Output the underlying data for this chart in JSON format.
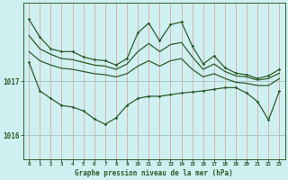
{
  "title": "Graphe pression niveau de la mer (hPa)",
  "bg_color": "#cff0f0",
  "line_color": "#2a5c2a",
  "grid_color_v": "#d8a8a8",
  "grid_color_h": "#a8c8c8",
  "xlim": [
    -0.5,
    23.5
  ],
  "ylim": [
    1015.55,
    1018.45
  ],
  "yticks": [
    1016,
    1017
  ],
  "xticks": [
    0,
    1,
    2,
    3,
    4,
    5,
    6,
    7,
    8,
    9,
    10,
    11,
    12,
    13,
    14,
    15,
    16,
    17,
    18,
    19,
    20,
    21,
    22,
    23
  ],
  "hours": [
    0,
    1,
    2,
    3,
    4,
    5,
    6,
    7,
    8,
    9,
    10,
    11,
    12,
    13,
    14,
    15,
    16,
    17,
    18,
    19,
    20,
    21,
    22,
    23
  ],
  "line_upper": [
    1018.15,
    1017.82,
    1017.6,
    1017.55,
    1017.55,
    1017.45,
    1017.4,
    1017.38,
    1017.3,
    1017.42,
    1017.9,
    1018.08,
    1017.75,
    1018.05,
    1018.1,
    1017.65,
    1017.32,
    1017.47,
    1017.25,
    1017.15,
    1017.12,
    1017.05,
    1017.1,
    1017.22
  ],
  "line_hi": [
    1017.85,
    1017.6,
    1017.5,
    1017.42,
    1017.4,
    1017.35,
    1017.3,
    1017.28,
    1017.22,
    1017.32,
    1017.55,
    1017.7,
    1017.55,
    1017.68,
    1017.72,
    1017.45,
    1017.22,
    1017.32,
    1017.18,
    1017.1,
    1017.08,
    1017.02,
    1017.05,
    1017.15
  ],
  "line_lo": [
    1017.55,
    1017.38,
    1017.3,
    1017.24,
    1017.22,
    1017.18,
    1017.14,
    1017.12,
    1017.08,
    1017.14,
    1017.28,
    1017.38,
    1017.28,
    1017.38,
    1017.42,
    1017.22,
    1017.08,
    1017.14,
    1017.05,
    1016.98,
    1016.96,
    1016.92,
    1016.92,
    1017.05
  ],
  "line_lower": [
    1017.35,
    1016.82,
    1016.68,
    1016.55,
    1016.52,
    1016.45,
    1016.3,
    1016.2,
    1016.32,
    1016.55,
    1016.68,
    1016.72,
    1016.72,
    1016.75,
    1016.78,
    1016.8,
    1016.82,
    1016.85,
    1016.88,
    1016.88,
    1016.78,
    1016.62,
    1016.28,
    1016.82
  ]
}
